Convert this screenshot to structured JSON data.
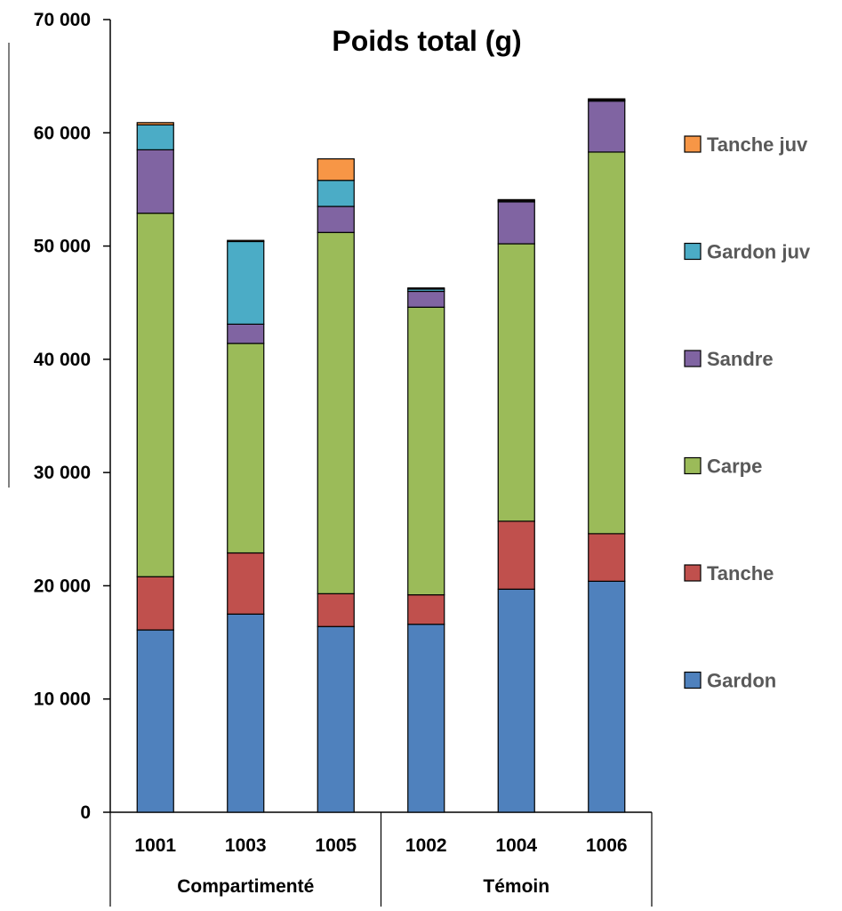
{
  "chart_data": {
    "type": "bar",
    "stacked": true,
    "title": "Poids total (g)",
    "xlabel": "",
    "ylabel": "",
    "ylim": [
      0,
      70000
    ],
    "yticks": [
      0,
      10000,
      20000,
      30000,
      40000,
      50000,
      60000,
      70000
    ],
    "ytick_labels": [
      "0",
      "10 000",
      "20 000",
      "30 000",
      "40 000",
      "50 000",
      "60 000",
      "70 000"
    ],
    "categories": [
      "1001",
      "1003",
      "1005",
      "1002",
      "1004",
      "1006"
    ],
    "groups": [
      {
        "label": "Compartimenté",
        "categories": [
          "1001",
          "1003",
          "1005"
        ]
      },
      {
        "label": "Témoin",
        "categories": [
          "1002",
          "1004",
          "1006"
        ]
      }
    ],
    "series": [
      {
        "name": "Gardon",
        "color": "#4f81bd",
        "values": [
          16100,
          17500,
          16400,
          16600,
          19700,
          20400
        ]
      },
      {
        "name": "Tanche",
        "color": "#c0504d",
        "values": [
          4700,
          5400,
          2900,
          2600,
          6000,
          4200
        ]
      },
      {
        "name": "Carpe",
        "color": "#9bbb59",
        "values": [
          32100,
          18500,
          31900,
          25400,
          24500,
          33700
        ]
      },
      {
        "name": "Sandre",
        "color": "#8064a2",
        "values": [
          5600,
          1700,
          2300,
          1400,
          3700,
          4500
        ]
      },
      {
        "name": "Gardon juv",
        "color": "#4bacc6",
        "values": [
          2200,
          7300,
          2300,
          200,
          100,
          100
        ]
      },
      {
        "name": "Tanche juv",
        "color": "#f79646",
        "values": [
          200,
          100,
          1900,
          100,
          100,
          100
        ]
      }
    ],
    "legend_position": "right",
    "grid": false
  }
}
